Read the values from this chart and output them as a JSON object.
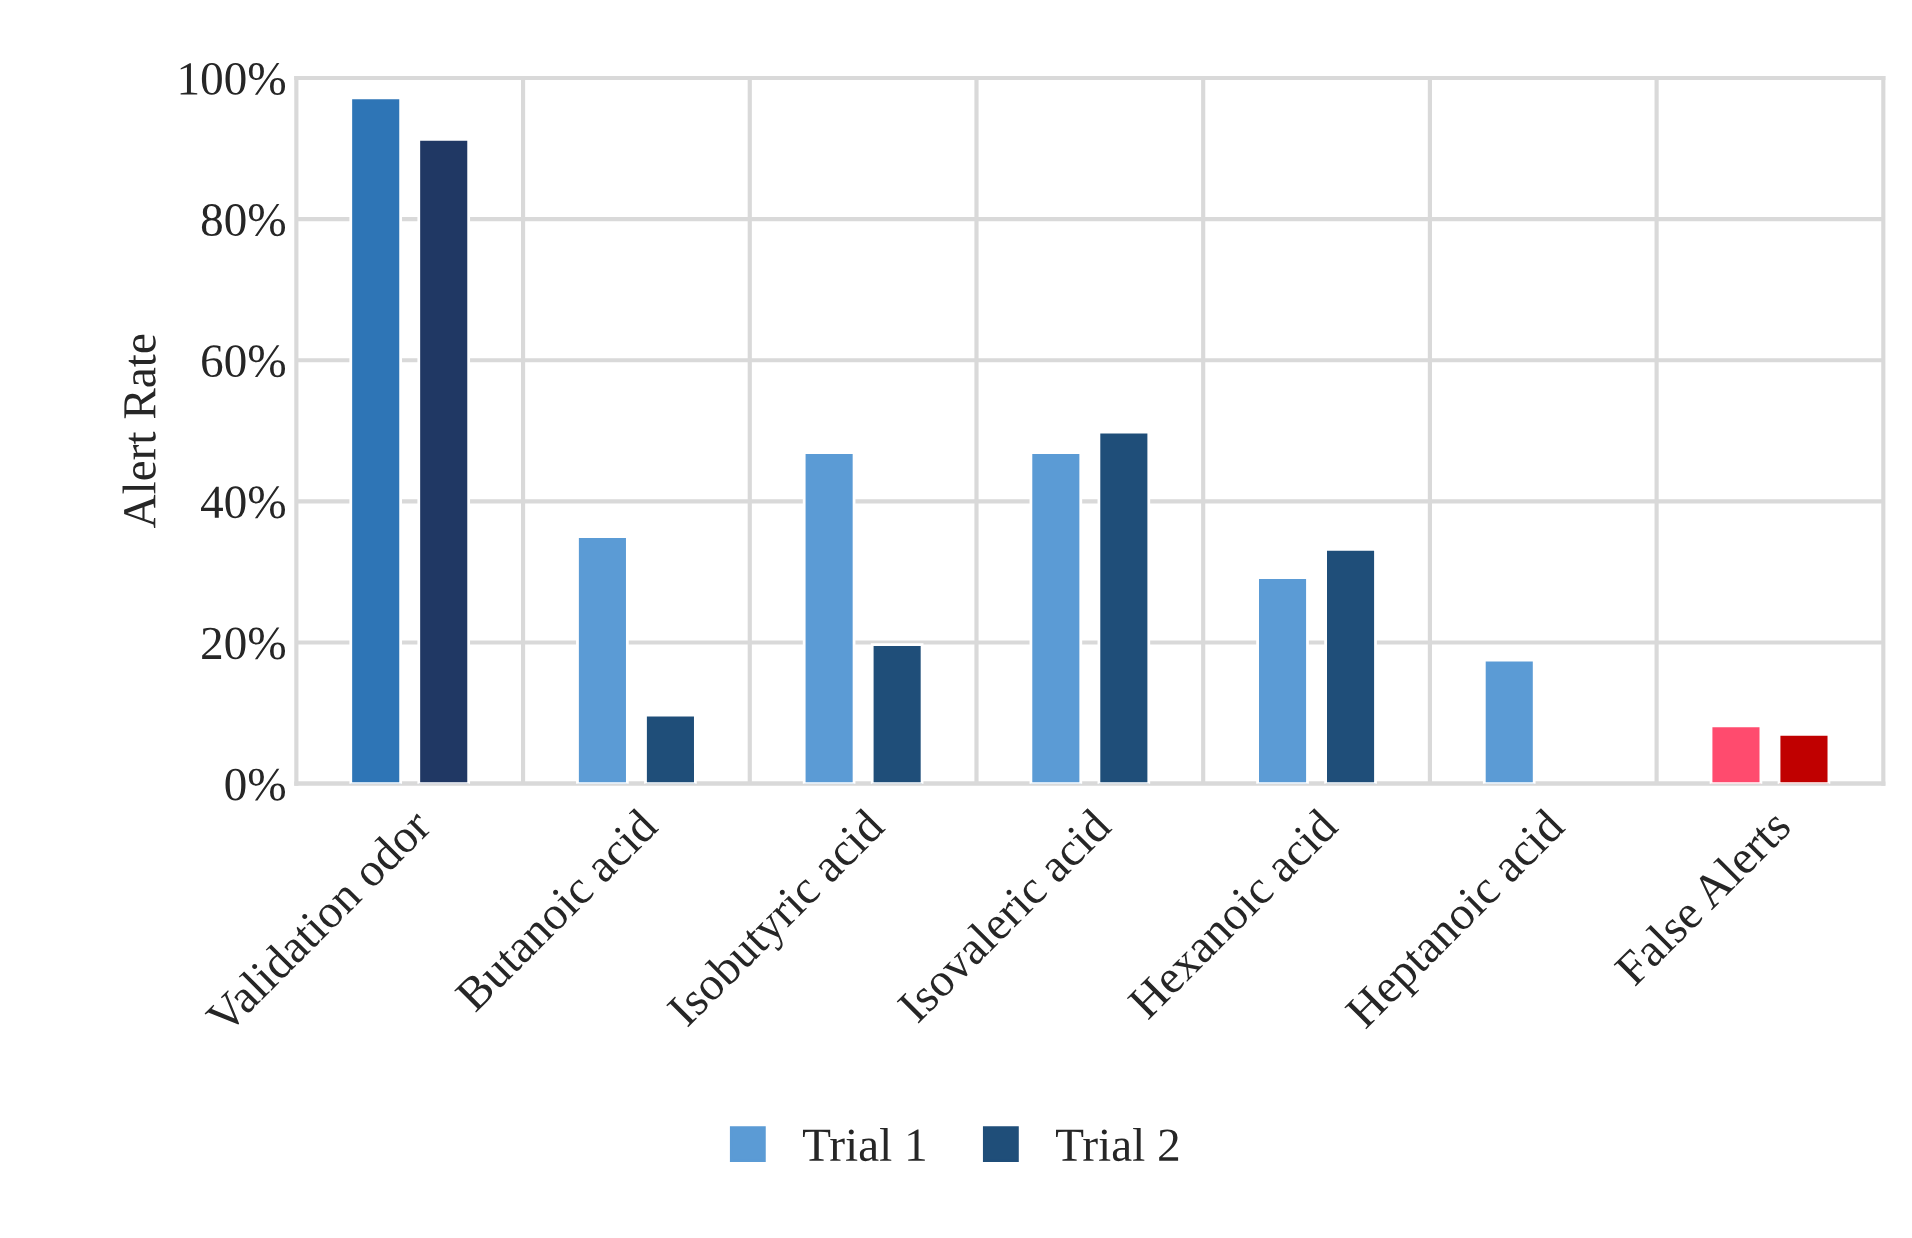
{
  "chart_data": {
    "type": "bar",
    "ylabel": "Alert Rate",
    "categories": [
      "Validation odor",
      "Butanoic acid",
      "Isobutyric acid",
      "Isovaleric acid",
      "Hexanoic acid",
      "Heptanoic acid",
      "False Alerts"
    ],
    "series": [
      {
        "name": "Trial 1",
        "color": "#5b9bd5",
        "colors": [
          "#2e75b6",
          "#5b9bd5",
          "#5b9bd5",
          "#5b9bd5",
          "#5b9bd5",
          "#5b9bd5",
          "#ff4b6e"
        ],
        "values": [
          97.2,
          35.0,
          46.9,
          46.9,
          29.2,
          17.5,
          8.2
        ]
      },
      {
        "name": "Trial 2",
        "color": "#1f4e79",
        "colors": [
          "#203864",
          "#1f4e79",
          "#1f4e79",
          "#1f4e79",
          "#1f4e79",
          "#1f4e79",
          "#c00000"
        ],
        "values": [
          91.3,
          9.7,
          19.7,
          49.8,
          33.2,
          null,
          7.0
        ]
      }
    ],
    "ylim": [
      0,
      100
    ],
    "yticks": [
      {
        "value": 0,
        "label": "0%"
      },
      {
        "value": 20,
        "label": "20%"
      },
      {
        "value": 40,
        "label": "40%"
      },
      {
        "value": 60,
        "label": "60%"
      },
      {
        "value": 80,
        "label": "80%"
      },
      {
        "value": 100,
        "label": "100%"
      }
    ],
    "grid": true,
    "legend": "bottom"
  }
}
